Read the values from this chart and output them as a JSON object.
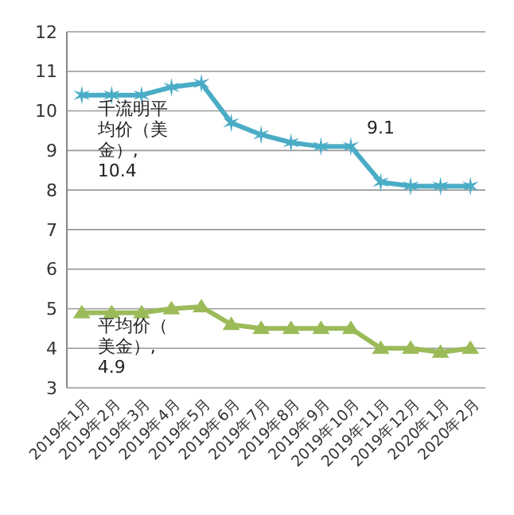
{
  "chart_data": {
    "type": "line",
    "categories": [
      "2019年1月",
      "2019年2月",
      "2019年3月",
      "2019年4月",
      "2019年5月",
      "2019年6月",
      "2019年7月",
      "2019年8月",
      "2019年9月",
      "2019年10月",
      "2019年11月",
      "2019年12月",
      "2020年1月",
      "2020年2月"
    ],
    "series": [
      {
        "color": "#4bacc6",
        "marker": "cross",
        "values": [
          10.4,
          10.4,
          10.4,
          10.6,
          10.7,
          9.7,
          9.4,
          9.2,
          9.1,
          9.1,
          8.2,
          8.1,
          8.1,
          8.1
        ]
      },
      {
        "color": "#9bbb59",
        "marker": "triangle",
        "values": [
          4.9,
          4.9,
          4.9,
          5.0,
          5.05,
          4.6,
          4.5,
          4.5,
          4.5,
          4.5,
          4.0,
          4.0,
          3.9,
          4.0
        ]
      }
    ],
    "ylim": [
      3,
      12
    ],
    "yticks": [
      3,
      4,
      5,
      6,
      7,
      8,
      9,
      10,
      11,
      12
    ],
    "grid": "y",
    "annotations": [
      {
        "text": "千流明平均价（美金）, 10.4",
        "x": "2019年1月",
        "y": 10.4
      },
      {
        "text": "9.1",
        "x": "2019年10月",
        "y": 9.1
      },
      {
        "text": "平均价（美金）, 4.9",
        "x": "2019年1月",
        "y": 4.9
      }
    ]
  }
}
